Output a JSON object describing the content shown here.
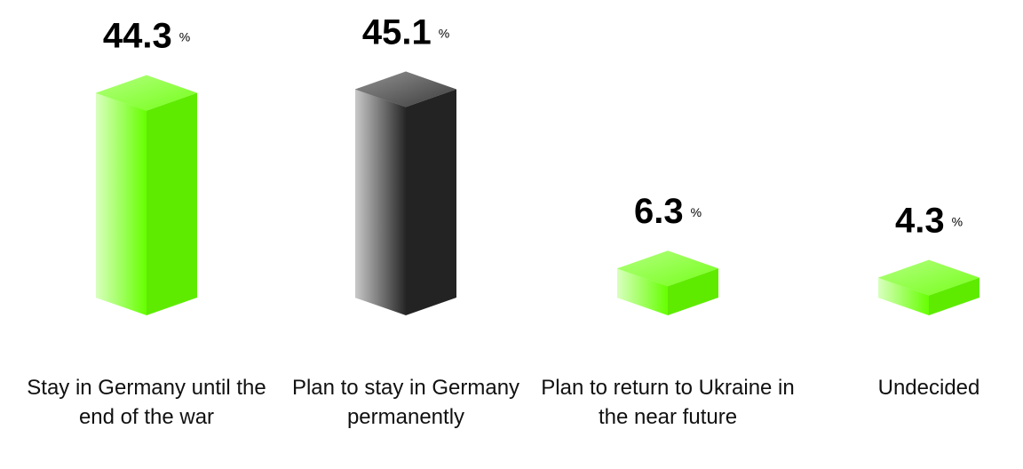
{
  "chart_data": {
    "type": "bar3d",
    "categories": [
      "Stay in Germany until the end of the war",
      "Plan to stay in Germany permanently",
      "Plan to return to Ukraine in the near future",
      "Undecided"
    ],
    "values": [
      44.3,
      45.1,
      6.3,
      4.3
    ],
    "unit": "%",
    "colors": [
      "#66ff00",
      "#262626",
      "#66ff00",
      "#66ff00"
    ]
  }
}
